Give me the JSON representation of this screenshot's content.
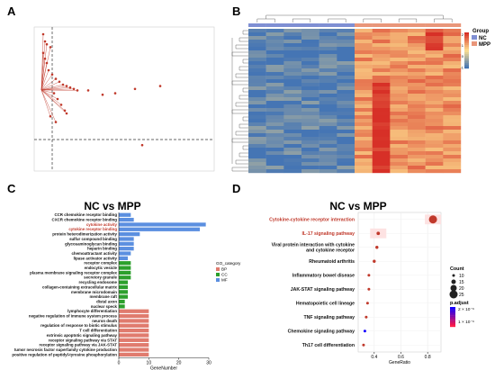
{
  "panels": {
    "a": {
      "letter": "A"
    },
    "b": {
      "letter": "B"
    },
    "c": {
      "letter": "C",
      "title": "NC vs MPP"
    },
    "d": {
      "letter": "D",
      "title": "NC vs MPP"
    }
  },
  "colors": {
    "bp": "#e07b6e",
    "cc": "#2ca02c",
    "mf": "#5b8fe0",
    "heat_low": "#4575b4",
    "heat_mid": "#fee090",
    "heat_high": "#d73027",
    "group_nc": "#7f8fd3",
    "group_mpp": "#e9967a",
    "grad_high": "#1400ff",
    "grad_low": "#ff1744",
    "highlight": "#c0392b"
  },
  "chart_data": [
    {
      "type": "scatter",
      "panel": "A",
      "title": "",
      "note": "volcano-style scatter; point labels and axis text too small to read",
      "points": [
        {
          "x": 0.05,
          "y": 0.18
        },
        {
          "x": 0.06,
          "y": 0.22
        },
        {
          "x": 0.07,
          "y": 0.25
        },
        {
          "x": 0.08,
          "y": 0.3
        },
        {
          "x": 0.1,
          "y": 0.33
        },
        {
          "x": 0.12,
          "y": 0.36
        },
        {
          "x": 0.14,
          "y": 0.38
        },
        {
          "x": 0.16,
          "y": 0.4
        },
        {
          "x": 0.18,
          "y": 0.41
        },
        {
          "x": 0.2,
          "y": 0.42
        },
        {
          "x": 0.22,
          "y": 0.43
        },
        {
          "x": 0.24,
          "y": 0.44
        },
        {
          "x": 0.3,
          "y": 0.44
        },
        {
          "x": 0.38,
          "y": 0.47
        },
        {
          "x": 0.45,
          "y": 0.46
        },
        {
          "x": 0.56,
          "y": 0.43
        },
        {
          "x": 0.7,
          "y": 0.41
        },
        {
          "x": 0.05,
          "y": 0.05
        },
        {
          "x": 0.06,
          "y": 0.1
        },
        {
          "x": 0.07,
          "y": 0.12
        },
        {
          "x": 0.09,
          "y": 0.14
        },
        {
          "x": 0.11,
          "y": 0.46
        },
        {
          "x": 0.13,
          "y": 0.5
        },
        {
          "x": 0.15,
          "y": 0.54
        },
        {
          "x": 0.17,
          "y": 0.58
        },
        {
          "x": 0.09,
          "y": 0.62
        },
        {
          "x": 0.12,
          "y": 0.66
        },
        {
          "x": 0.18,
          "y": 0.6
        },
        {
          "x": 0.6,
          "y": 0.82
        }
      ],
      "xlabel": "",
      "ylabel": ""
    },
    {
      "type": "heatmap",
      "panel": "B",
      "legend_title": "Group",
      "groups": [
        "NC",
        "MPP"
      ],
      "color_scale_ticks": [
        "2",
        "1",
        "0",
        "-1"
      ],
      "n_cols": 12,
      "n_rows": 40,
      "note": "left 6 columns NC (low, blue), right 6 columns MPP (high, yellow/red); row gene labels too small to read"
    },
    {
      "type": "bar",
      "orientation": "horizontal",
      "panel": "C",
      "title": "NC vs MPP",
      "xlabel": "GeneNumber",
      "xlim": [
        0,
        30
      ],
      "xticks": [
        0,
        10,
        20,
        30
      ],
      "legend_title": "GO_category",
      "legend": [
        "BP",
        "CC",
        "MF"
      ],
      "highlighted": [
        "cytokine activity",
        "cytokine receptor binding"
      ],
      "categories": [
        "CCR chemokine receptor binding",
        "CXCR chemokine receptor binding",
        "cytokine activity",
        "cytokine receptor binding",
        "protein heterodimerization activity",
        "sulfur compound binding",
        "glycosaminoglycan binding",
        "heparin binding",
        "chemoattractant activity",
        "lipase activator activity",
        "receptor complex",
        "endocytic vesicle",
        "plasma membrane signaling receptor complex",
        "secretory granule",
        "recycling endosome",
        "collagen-containing extracellular matrix",
        "membrane microdomain",
        "membrane raft",
        "distal axon",
        "nuclear speck",
        "lymphocyte differentiation",
        "negative regulation of immune system process",
        "neuron death",
        "regulation of response to biotic stimulus",
        "T cell differentiation",
        "extrinsic apoptotic signaling pathway",
        "receptor signaling pathway via STAT",
        "receptor signaling pathway via JAK-STAT",
        "tumor necrosis factor superfamily cytokine production",
        "positive regulation of peptidyl-tyrosine phosphorylation"
      ],
      "values": [
        4,
        5,
        29,
        27,
        7,
        5,
        5,
        5,
        4,
        3,
        4,
        4,
        4,
        4,
        3,
        3,
        3,
        3,
        2,
        2,
        10,
        10,
        10,
        10,
        10,
        10,
        10,
        10,
        10,
        10
      ],
      "category_groups": [
        "MF",
        "MF",
        "MF",
        "MF",
        "MF",
        "MF",
        "MF",
        "MF",
        "MF",
        "MF",
        "CC",
        "CC",
        "CC",
        "CC",
        "CC",
        "CC",
        "CC",
        "CC",
        "CC",
        "CC",
        "BP",
        "BP",
        "BP",
        "BP",
        "BP",
        "BP",
        "BP",
        "BP",
        "BP",
        "BP"
      ]
    },
    {
      "type": "scatter",
      "subtype": "dot",
      "panel": "D",
      "title": "NC vs MPP",
      "xlabel": "GeneRatio",
      "xlim": [
        0.28,
        0.9
      ],
      "xticks": [
        "0.4",
        "0.6",
        "0.8"
      ],
      "size_legend_title": "Count",
      "size_legend": [
        10,
        15,
        20,
        25
      ],
      "color_legend_title": "p.adjust",
      "color_legend_ticks": [
        "2 × 10⁻⁶",
        "1 × 10⁻⁶"
      ],
      "highlighted": [
        "Cytokine-cytokine receptor interaction",
        "IL-17 signaling pathway"
      ],
      "categories": [
        "Cytokine-cytokine receptor interaction",
        "IL-17 signaling pathway",
        "Viral protein interaction with cytokine and cytokine receptor",
        "Rheumatoid arthritis",
        "Inflammatory bowel disease",
        "JAK-STAT signaling pathway",
        "Hematopoietic cell lineage",
        "TNF signaling pathway",
        "Chemokine signaling pathway",
        "Th17 cell differentiation"
      ],
      "x": [
        0.84,
        0.43,
        0.42,
        0.4,
        0.36,
        0.36,
        0.35,
        0.34,
        0.33,
        0.32
      ],
      "count": [
        25,
        12,
        11,
        11,
        10,
        10,
        10,
        10,
        10,
        10
      ],
      "p_adjust_color": [
        "#ff1744",
        "#ff1744",
        "#ff1744",
        "#ff1744",
        "#ff1744",
        "#ff1744",
        "#ff1744",
        "#ff1744",
        "#1400ff",
        "#ff1744"
      ]
    }
  ]
}
